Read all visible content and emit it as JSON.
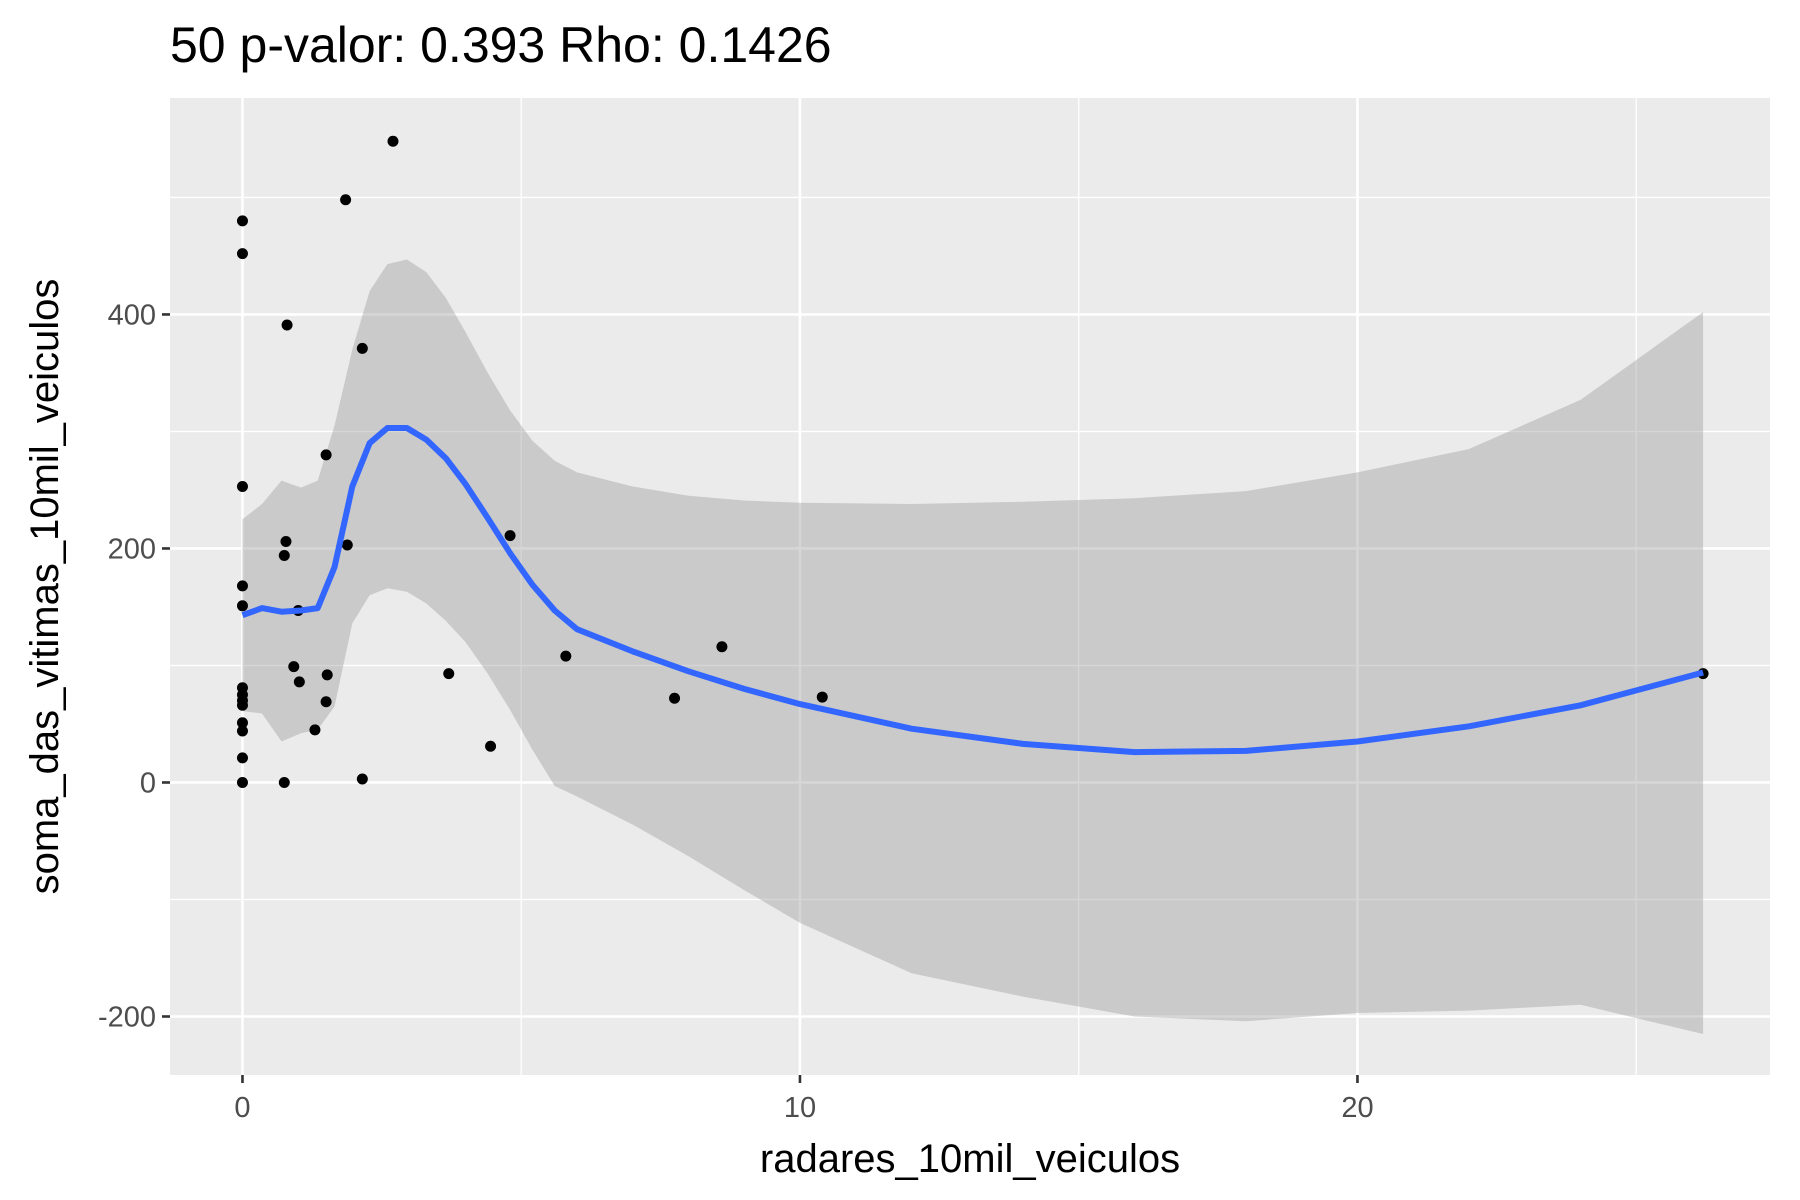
{
  "chart_data": {
    "type": "scatter",
    "title": "50 p-valor: 0.393 Rho: 0.1426",
    "xlabel": "radares_10mil_veiculos",
    "ylabel": "soma_das_vitimas_10mil_veiculos",
    "xlim": [
      -1.3,
      27.4
    ],
    "ylim": [
      -250,
      585
    ],
    "x_ticks": [
      0,
      10,
      20
    ],
    "x_tick_labels": [
      "0",
      "10",
      "20"
    ],
    "x_minor_ticks": [
      5,
      15,
      25
    ],
    "y_ticks": [
      -200,
      0,
      200,
      400
    ],
    "y_tick_labels": [
      "-200",
      "0",
      "200",
      "400"
    ],
    "y_minor_ticks": [
      -100,
      100,
      300,
      500
    ],
    "grid": true,
    "legend": "none",
    "colors": {
      "panel_background": "#ebebeb",
      "grid": "#ffffff",
      "points": "#000000",
      "smooth_line": "#3366ff",
      "confidence_band": "#c8c8c8"
    },
    "points": [
      {
        "x": 0,
        "y": 480
      },
      {
        "x": 0,
        "y": 452
      },
      {
        "x": 0,
        "y": 253
      },
      {
        "x": 0,
        "y": 168
      },
      {
        "x": 0,
        "y": 151
      },
      {
        "x": 0,
        "y": 81
      },
      {
        "x": 0,
        "y": 75
      },
      {
        "x": 0,
        "y": 70
      },
      {
        "x": 0,
        "y": 66
      },
      {
        "x": 0,
        "y": 51
      },
      {
        "x": 0,
        "y": 44
      },
      {
        "x": 0,
        "y": 21
      },
      {
        "x": 0,
        "y": 0
      },
      {
        "x": 0.75,
        "y": 0
      },
      {
        "x": 0.75,
        "y": 194
      },
      {
        "x": 0.78,
        "y": 206
      },
      {
        "x": 0.8,
        "y": 391
      },
      {
        "x": 0.92,
        "y": 99
      },
      {
        "x": 1.0,
        "y": 147
      },
      {
        "x": 1.02,
        "y": 86
      },
      {
        "x": 1.3,
        "y": 45
      },
      {
        "x": 1.5,
        "y": 280
      },
      {
        "x": 1.5,
        "y": 69
      },
      {
        "x": 1.52,
        "y": 92
      },
      {
        "x": 1.85,
        "y": 498
      },
      {
        "x": 1.88,
        "y": 203
      },
      {
        "x": 2.15,
        "y": 371
      },
      {
        "x": 2.15,
        "y": 3
      },
      {
        "x": 2.7,
        "y": 548
      },
      {
        "x": 3.7,
        "y": 93
      },
      {
        "x": 4.45,
        "y": 31
      },
      {
        "x": 4.8,
        "y": 211
      },
      {
        "x": 5.8,
        "y": 108
      },
      {
        "x": 7.75,
        "y": 72
      },
      {
        "x": 8.6,
        "y": 116
      },
      {
        "x": 10.4,
        "y": 73
      },
      {
        "x": 26.2,
        "y": 93
      }
    ],
    "smooth": {
      "x": [
        0,
        0.35,
        0.7,
        1.05,
        1.35,
        1.65,
        1.97,
        2.28,
        2.6,
        2.95,
        3.3,
        3.65,
        4.0,
        4.4,
        4.8,
        5.2,
        5.6,
        6.0,
        7.0,
        8.0,
        9.0,
        10.0,
        12.0,
        14.0,
        16.0,
        18.0,
        20.0,
        22.0,
        24.0,
        26.2
      ],
      "y": [
        143,
        149,
        146,
        147,
        149,
        184,
        253,
        290,
        303,
        303,
        293,
        277,
        255,
        226,
        196,
        169,
        147,
        131,
        112,
        95,
        80,
        67,
        46,
        33,
        26,
        27,
        35,
        48,
        66,
        94
      ],
      "upper": [
        225,
        238,
        258,
        252,
        258,
        305,
        370,
        420,
        443,
        447,
        436,
        414,
        385,
        350,
        318,
        292,
        275,
        265,
        253,
        245,
        241,
        239,
        238,
        240,
        243,
        249,
        265,
        285,
        327,
        402
      ],
      "lower": [
        61,
        59,
        35,
        42,
        45,
        65,
        136,
        160,
        166,
        163,
        153,
        138,
        120,
        93,
        62,
        28,
        -3,
        -12,
        -36,
        -63,
        -92,
        -120,
        -163,
        -183,
        -200,
        -204,
        -197,
        -195,
        -190,
        -215
      ]
    }
  }
}
